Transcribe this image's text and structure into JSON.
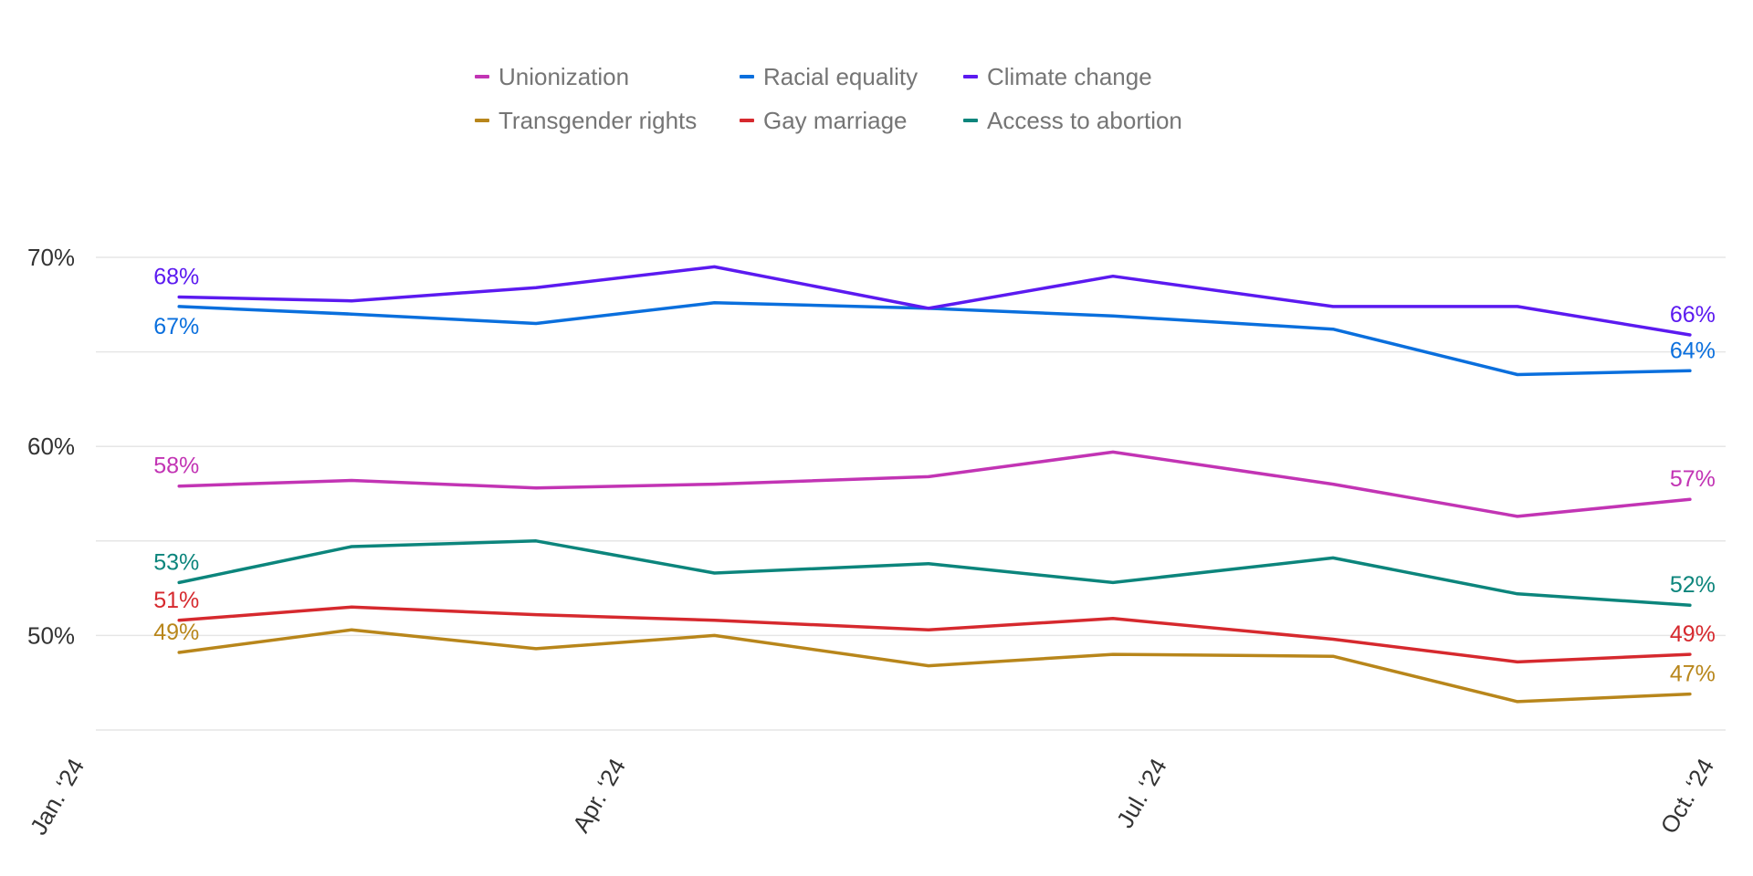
{
  "chart_data": {
    "type": "line",
    "x": [
      "2024-01-15",
      "2024-02-13",
      "2024-03-15",
      "2024-04-14",
      "2024-05-20",
      "2024-06-20",
      "2024-07-27",
      "2024-08-27",
      "2024-09-25"
    ],
    "xlim": [
      "2024-01-01",
      "2024-10-01"
    ],
    "xticks": [
      {
        "date": "2024-01-01",
        "label": "Jan. ‘24"
      },
      {
        "date": "2024-04-01",
        "label": "Apr. ‘24"
      },
      {
        "date": "2024-07-01",
        "label": "Jul. ‘24"
      },
      {
        "date": "2024-10-01",
        "label": "Oct. ‘24"
      }
    ],
    "ylim": [
      45,
      70
    ],
    "yticks": [
      {
        "value": 70,
        "label": "70%"
      },
      {
        "value": 60,
        "label": "60%"
      },
      {
        "value": 50,
        "label": "50%"
      }
    ],
    "grid_y_values": [
      45,
      50,
      55,
      60,
      65,
      70
    ],
    "legend_placement": "top",
    "series": [
      {
        "name": "Unionization",
        "color": "#C234B4",
        "values": [
          57.9,
          58.2,
          57.8,
          58.0,
          58.4,
          59.7,
          58.0,
          56.3,
          57.2
        ],
        "start_label": "58%",
        "end_label": "57%"
      },
      {
        "name": "Racial equality",
        "color": "#0A6FDD",
        "values": [
          67.4,
          67.0,
          66.5,
          67.6,
          67.3,
          66.9,
          66.2,
          63.8,
          64.0
        ],
        "start_label": "67%",
        "end_label": "64%"
      },
      {
        "name": "Climate change",
        "color": "#5B1AF0",
        "values": [
          67.9,
          67.7,
          68.4,
          69.5,
          67.3,
          69.0,
          67.4,
          67.4,
          65.9
        ],
        "start_label": "68%",
        "end_label": "66%"
      },
      {
        "name": "Transgender rights",
        "color": "#B8861B",
        "values": [
          49.1,
          50.3,
          49.3,
          50.0,
          48.4,
          49.0,
          48.9,
          46.5,
          46.9
        ],
        "start_label": "49%",
        "end_label": "47%"
      },
      {
        "name": "Gay marriage",
        "color": "#D6292E",
        "values": [
          50.8,
          51.5,
          51.1,
          50.8,
          50.3,
          50.9,
          49.8,
          48.6,
          49.0
        ],
        "start_label": "51%",
        "end_label": "49%"
      },
      {
        "name": "Access to abortion",
        "color": "#0C857C",
        "values": [
          52.8,
          54.7,
          55.0,
          53.3,
          53.8,
          52.8,
          54.1,
          52.2,
          51.6
        ],
        "start_label": "53%",
        "end_label": "52%"
      }
    ]
  }
}
